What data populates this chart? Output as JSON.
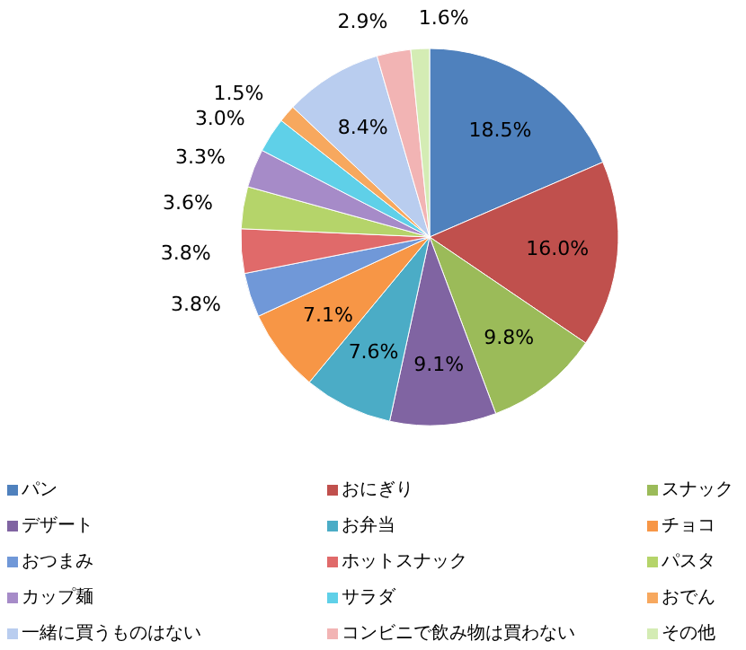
{
  "chart_data": {
    "type": "pie",
    "categories": [
      "パン",
      "おにぎり",
      "スナック",
      "デザート",
      "お弁当",
      "チョコ",
      "おつまみ",
      "ホットスナック",
      "パスタ",
      "カップ麺",
      "サラダ",
      "おでん",
      "一緒に買うものはない",
      "コンビニで飲み物は買わない",
      "その他"
    ],
    "values": [
      18.5,
      16.0,
      9.8,
      9.1,
      7.6,
      7.1,
      3.8,
      3.8,
      3.6,
      3.3,
      3.0,
      1.5,
      8.4,
      2.9,
      1.6
    ],
    "value_labels": [
      "18.5%",
      "16.0%",
      "9.8%",
      "9.1%",
      "7.6%",
      "7.1%",
      "3.8%",
      "3.8%",
      "3.6%",
      "3.3%",
      "3.0%",
      "1.5%",
      "8.4%",
      "2.9%",
      "1.6%"
    ],
    "colors": [
      "#4f81bd",
      "#c0504d",
      "#9bbb59",
      "#8064a2",
      "#4bacc6",
      "#f79646",
      "#7098d8",
      "#e06a6a",
      "#b5d46a",
      "#a68bc8",
      "#5fd0e8",
      "#f7a85e",
      "#b9cdef",
      "#f2b4b4",
      "#d4ecb4"
    ],
    "legend": "bottom"
  }
}
